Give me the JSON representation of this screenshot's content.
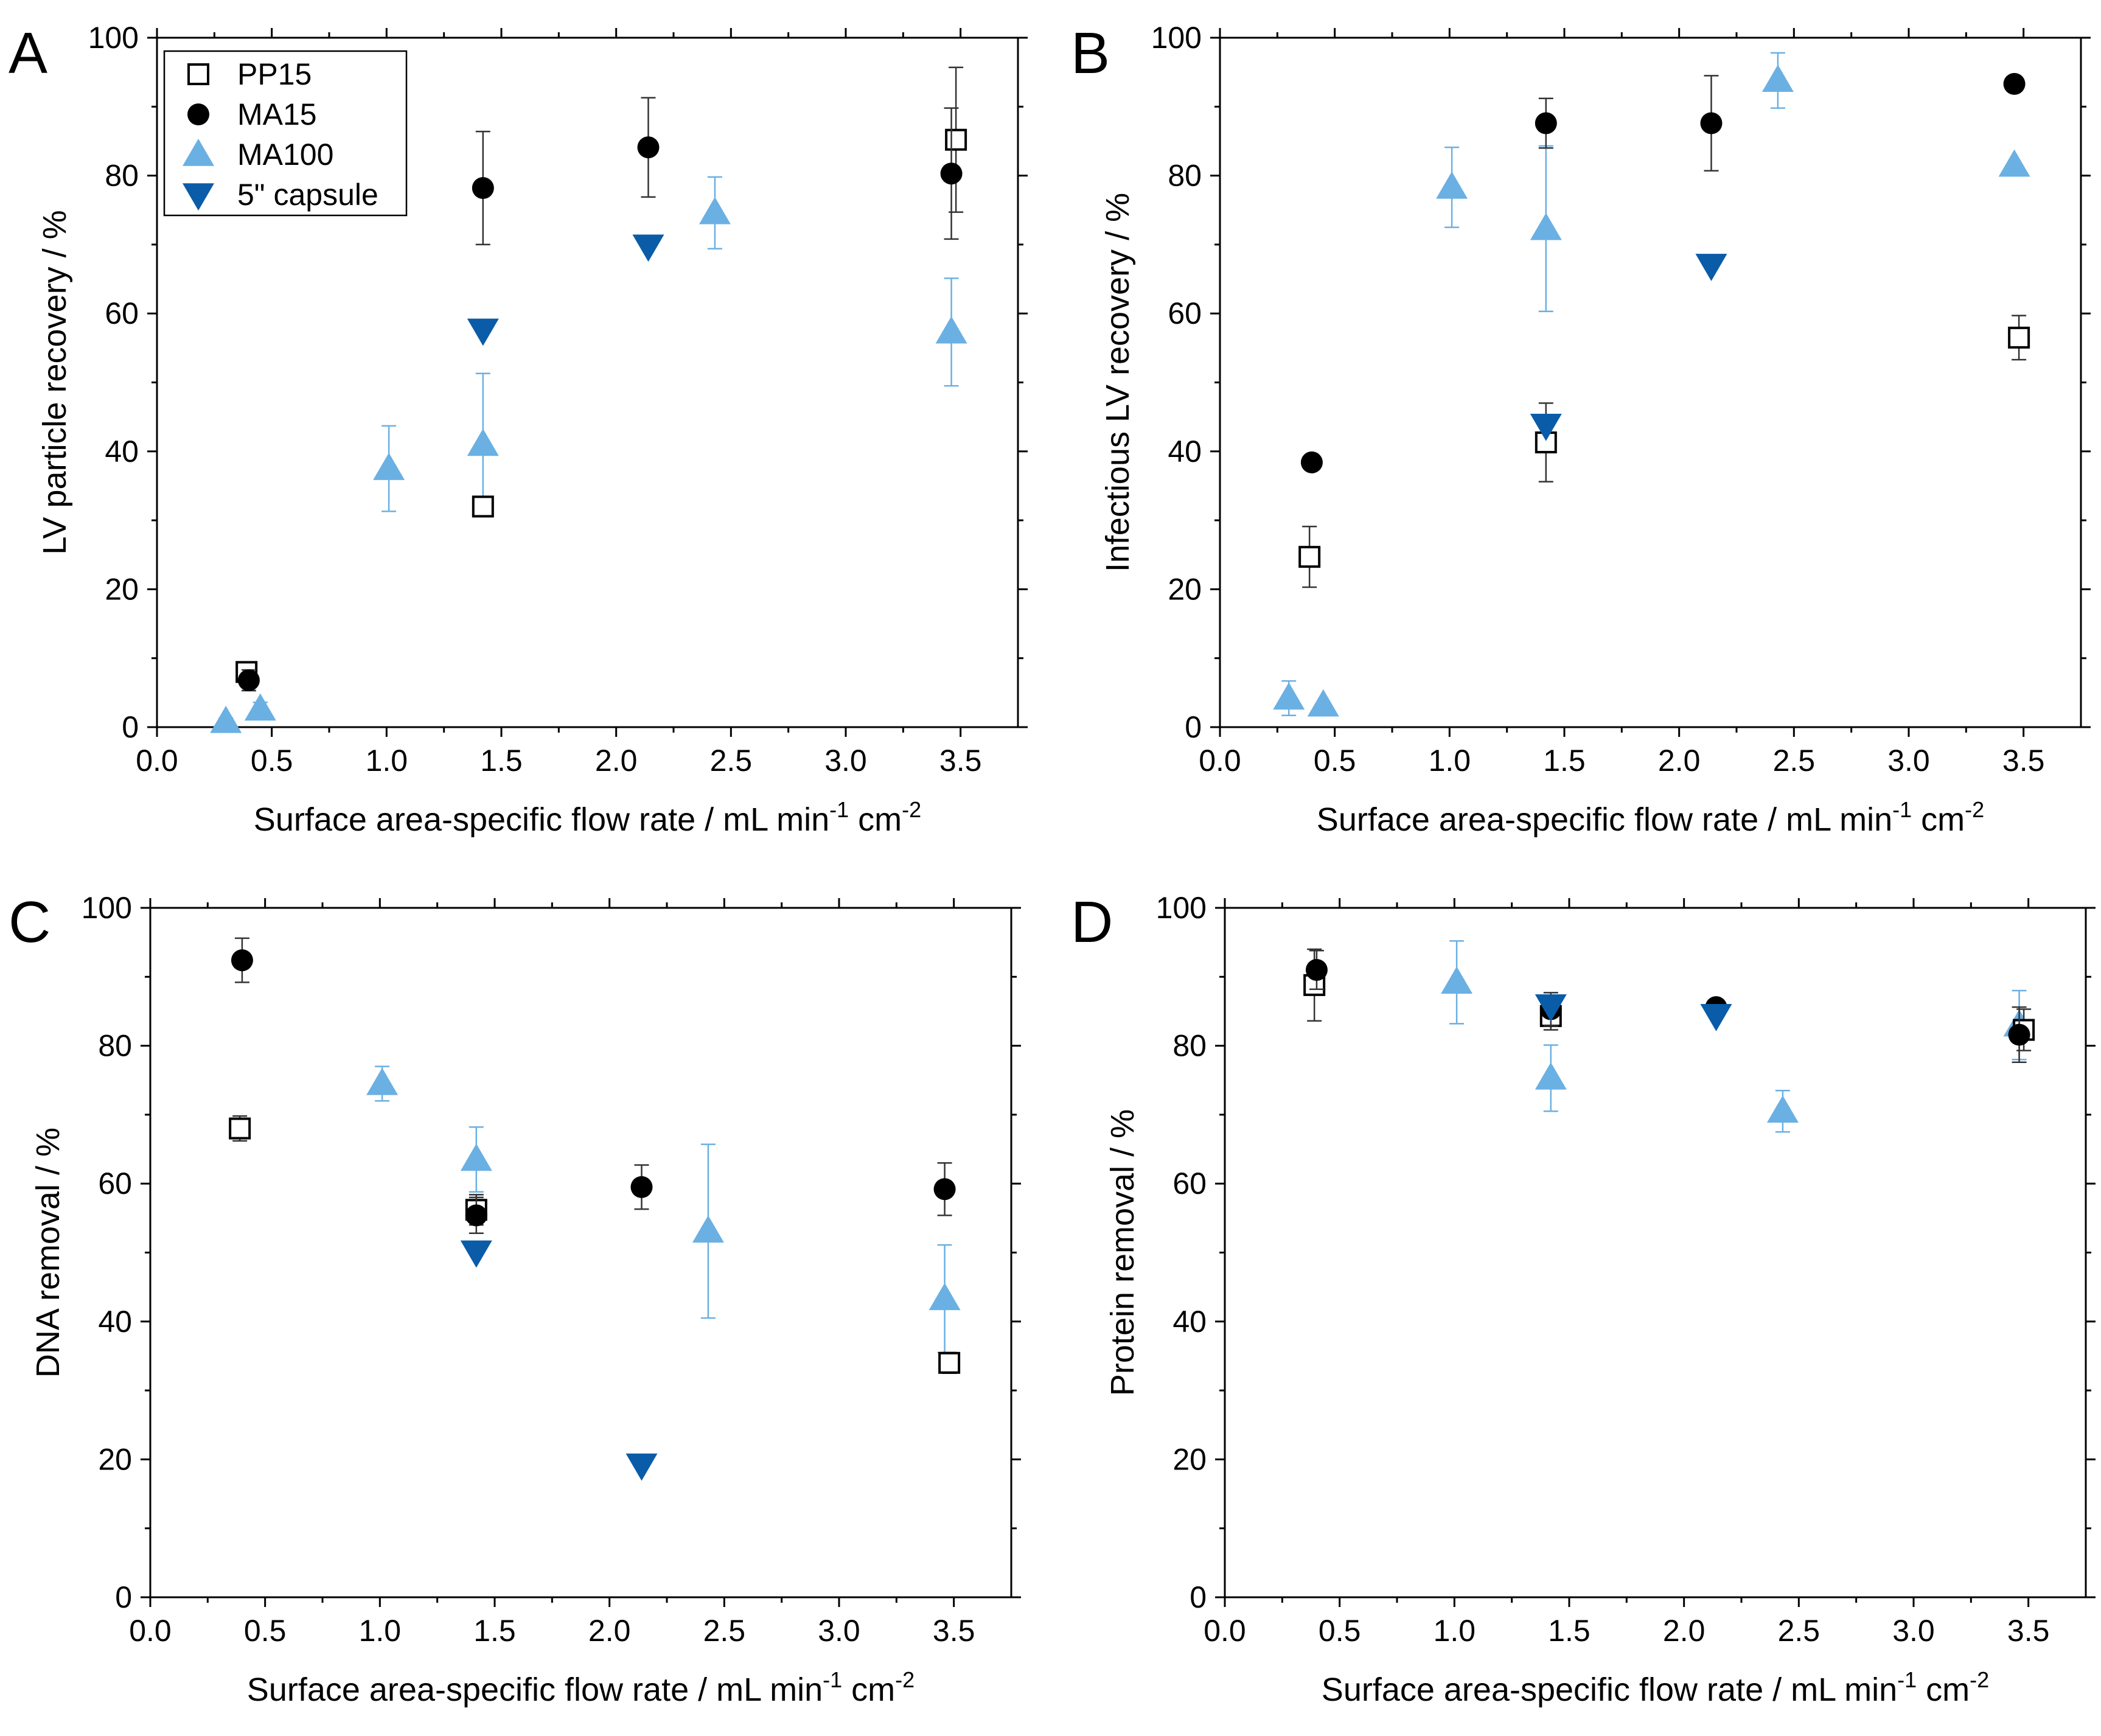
{
  "legend": [
    {
      "key": "pp15",
      "label": "PP15"
    },
    {
      "key": "ma15",
      "label": "MA15"
    },
    {
      "key": "ma100",
      "label": "MA100"
    },
    {
      "key": "capsule",
      "label": "5\" capsule"
    }
  ],
  "series_style": {
    "pp15": {
      "marker": "square-open",
      "color": "#000000"
    },
    "ma15": {
      "marker": "circle",
      "color": "#000000"
    },
    "ma100": {
      "marker": "triangle-up",
      "color": "#6ab0e3"
    },
    "capsule": {
      "marker": "triangle-down",
      "color": "#0a5ca8"
    }
  },
  "chart_data": [
    {
      "panel": "A",
      "type": "scatter",
      "xlabel": "Surface area-specific flow rate / mL min",
      "xlabel_sup1": "-1",
      "xlabel_mid": " cm",
      "xlabel_sup2": "-2",
      "ylabel": "LV particle recovery / %",
      "xlim": [
        0,
        3.75
      ],
      "ylim": [
        0,
        100
      ],
      "xticks": [
        "0.0",
        "0.5",
        "1.0",
        "1.5",
        "2.0",
        "2.5",
        "3.0",
        "3.5"
      ],
      "yticks": [
        "0",
        "20",
        "40",
        "60",
        "80",
        "100"
      ],
      "legend_position": "top-left",
      "series": [
        {
          "key": "pp15",
          "points": [
            {
              "x": 0.39,
              "y": 8,
              "err": 0.8
            },
            {
              "x": 1.42,
              "y": 32,
              "err": 1.2
            },
            {
              "x": 3.48,
              "y": 85.2,
              "err": 10.5
            }
          ]
        },
        {
          "key": "ma15",
          "points": [
            {
              "x": 0.4,
              "y": 6.8,
              "err": 1.5
            },
            {
              "x": 1.42,
              "y": 78.2,
              "err": 8.2
            },
            {
              "x": 2.14,
              "y": 84.1,
              "err": 7.2
            },
            {
              "x": 3.46,
              "y": 80.3,
              "err": 9.5
            }
          ]
        },
        {
          "key": "ma100",
          "points": [
            {
              "x": 0.3,
              "y": 0.8,
              "err": 0.5
            },
            {
              "x": 0.45,
              "y": 2.6,
              "err": 1.0
            },
            {
              "x": 1.01,
              "y": 37.5,
              "err": 6.2
            },
            {
              "x": 1.42,
              "y": 41,
              "err": 10.3
            },
            {
              "x": 2.43,
              "y": 74.6,
              "err": 5.2
            },
            {
              "x": 3.46,
              "y": 57.3,
              "err": 7.8
            }
          ]
        },
        {
          "key": "capsule",
          "points": [
            {
              "x": 1.42,
              "y": 57.6,
              "err": 0
            },
            {
              "x": 2.14,
              "y": 69.8,
              "err": 0
            }
          ]
        }
      ]
    },
    {
      "panel": "B",
      "type": "scatter",
      "xlabel": "Surface area-specific flow rate / mL min",
      "xlabel_sup1": "-1",
      "xlabel_mid": " cm",
      "xlabel_sup2": "-2",
      "ylabel": "Infectious LV recovery / %",
      "xlim": [
        0,
        3.75
      ],
      "ylim": [
        0,
        100
      ],
      "xticks": [
        "0.0",
        "0.5",
        "1.0",
        "1.5",
        "2.0",
        "2.5",
        "3.0",
        "3.5"
      ],
      "yticks": [
        "0",
        "20",
        "40",
        "60",
        "80",
        "100"
      ],
      "series": [
        {
          "key": "pp15",
          "points": [
            {
              "x": 0.39,
              "y": 24.7,
              "err": 4.4
            },
            {
              "x": 1.42,
              "y": 41.3,
              "err": 5.7
            },
            {
              "x": 3.48,
              "y": 56.5,
              "err": 3.2
            }
          ]
        },
        {
          "key": "ma15",
          "points": [
            {
              "x": 0.4,
              "y": 38.4,
              "err": 0
            },
            {
              "x": 1.42,
              "y": 87.6,
              "err": 3.6
            },
            {
              "x": 2.14,
              "y": 87.6,
              "err": 6.9
            },
            {
              "x": 3.46,
              "y": 93.3,
              "err": 0
            }
          ]
        },
        {
          "key": "ma100",
          "points": [
            {
              "x": 0.3,
              "y": 4.2,
              "err": 2.5
            },
            {
              "x": 0.45,
              "y": 3.2,
              "err": 0
            },
            {
              "x": 1.01,
              "y": 78.3,
              "err": 5.8
            },
            {
              "x": 1.42,
              "y": 72.3,
              "err": 12
            },
            {
              "x": 2.43,
              "y": 93.8,
              "err": 4
            },
            {
              "x": 3.46,
              "y": 81.5,
              "err": 0
            }
          ]
        },
        {
          "key": "capsule",
          "points": [
            {
              "x": 1.42,
              "y": 43.8,
              "err": 0
            },
            {
              "x": 2.14,
              "y": 67,
              "err": 0
            }
          ]
        }
      ]
    },
    {
      "panel": "C",
      "type": "scatter",
      "xlabel": "Surface area-specific flow rate / mL min",
      "xlabel_sup1": "-1",
      "xlabel_mid": " cm",
      "xlabel_sup2": "-2",
      "ylabel": "DNA removal / %",
      "xlim": [
        0,
        3.75
      ],
      "ylim": [
        0,
        100
      ],
      "xticks": [
        "0.0",
        "0.5",
        "1.0",
        "1.5",
        "2.0",
        "2.5",
        "3.0",
        "3.5"
      ],
      "yticks": [
        "0",
        "20",
        "40",
        "60",
        "80",
        "100"
      ],
      "series": [
        {
          "key": "pp15",
          "points": [
            {
              "x": 0.39,
              "y": 68,
              "err": 1.8
            },
            {
              "x": 1.42,
              "y": 56.2,
              "err": 2.2
            },
            {
              "x": 3.48,
              "y": 34,
              "err": 1.5
            }
          ]
        },
        {
          "key": "ma15",
          "points": [
            {
              "x": 0.4,
              "y": 92.4,
              "err": 3.2
            },
            {
              "x": 1.42,
              "y": 55.4,
              "err": 2.6
            },
            {
              "x": 2.14,
              "y": 59.5,
              "err": 3.2
            },
            {
              "x": 3.46,
              "y": 59.2,
              "err": 3.8
            }
          ]
        },
        {
          "key": "ma100",
          "points": [
            {
              "x": 1.01,
              "y": 74.5,
              "err": 2.5
            },
            {
              "x": 1.42,
              "y": 63.5,
              "err": 4.7
            },
            {
              "x": 2.43,
              "y": 53.1,
              "err": 12.6
            },
            {
              "x": 3.46,
              "y": 43.3,
              "err": 7.8
            }
          ]
        },
        {
          "key": "capsule",
          "points": [
            {
              "x": 1.42,
              "y": 50.1,
              "err": 0
            },
            {
              "x": 2.14,
              "y": 19.2,
              "err": 0
            }
          ]
        }
      ]
    },
    {
      "panel": "D",
      "type": "scatter",
      "xlabel": "Surface area-specific flow rate / mL min",
      "xlabel_sup1": "-1",
      "xlabel_mid": " cm",
      "xlabel_sup2": "-2",
      "ylabel": "Protein removal / %",
      "xlim": [
        0,
        3.75
      ],
      "ylim": [
        0,
        100
      ],
      "xticks": [
        "0.0",
        "0.5",
        "1.0",
        "1.5",
        "2.0",
        "2.5",
        "3.0",
        "3.5"
      ],
      "yticks": [
        "0",
        "20",
        "40",
        "60",
        "80",
        "100"
      ],
      "series": [
        {
          "key": "pp15",
          "points": [
            {
              "x": 0.39,
              "y": 88.8,
              "err": 5.2
            },
            {
              "x": 1.42,
              "y": 84.3,
              "err": 2
            },
            {
              "x": 3.48,
              "y": 82.3,
              "err": 3
            }
          ]
        },
        {
          "key": "ma15",
          "points": [
            {
              "x": 0.4,
              "y": 91,
              "err": 2.8
            },
            {
              "x": 1.42,
              "y": 85.3,
              "err": 2.4
            },
            {
              "x": 2.14,
              "y": 85.6,
              "err": 1
            },
            {
              "x": 3.46,
              "y": 81.6,
              "err": 4
            }
          ]
        },
        {
          "key": "ma100",
          "points": [
            {
              "x": 1.01,
              "y": 89.2,
              "err": 6
            },
            {
              "x": 1.42,
              "y": 75.3,
              "err": 4.8
            },
            {
              "x": 2.43,
              "y": 70.5,
              "err": 3
            },
            {
              "x": 3.46,
              "y": 83,
              "err": 5
            }
          ]
        },
        {
          "key": "capsule",
          "points": [
            {
              "x": 1.42,
              "y": 85.8,
              "err": 0
            },
            {
              "x": 2.14,
              "y": 84.4,
              "err": 0
            }
          ]
        }
      ]
    }
  ]
}
